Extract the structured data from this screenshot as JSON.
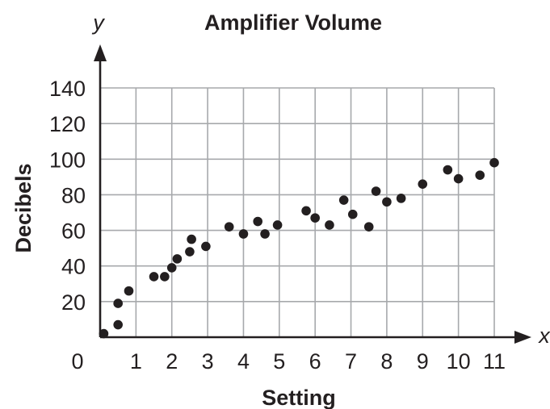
{
  "chart_data": {
    "type": "scatter",
    "title": "Amplifier Volume",
    "xlabel": "Setting",
    "ylabel": "Decibels",
    "x_axis_letter": "x",
    "y_axis_letter": "y",
    "origin_label": "0",
    "xlim": [
      0,
      11
    ],
    "ylim": [
      0,
      140
    ],
    "x_ticks": [
      1,
      2,
      3,
      4,
      5,
      6,
      7,
      8,
      9,
      10,
      11
    ],
    "y_ticks": [
      20,
      40,
      60,
      80,
      100,
      120,
      140
    ],
    "grid": true,
    "points": [
      {
        "x": 0.1,
        "y": 2
      },
      {
        "x": 0.5,
        "y": 7
      },
      {
        "x": 0.5,
        "y": 19
      },
      {
        "x": 0.8,
        "y": 26
      },
      {
        "x": 1.5,
        "y": 34
      },
      {
        "x": 1.8,
        "y": 34
      },
      {
        "x": 2.0,
        "y": 39
      },
      {
        "x": 2.15,
        "y": 44
      },
      {
        "x": 2.5,
        "y": 48
      },
      {
        "x": 2.55,
        "y": 55
      },
      {
        "x": 2.95,
        "y": 51
      },
      {
        "x": 3.6,
        "y": 62
      },
      {
        "x": 4.0,
        "y": 58
      },
      {
        "x": 4.4,
        "y": 65
      },
      {
        "x": 4.6,
        "y": 58
      },
      {
        "x": 4.95,
        "y": 63
      },
      {
        "x": 5.75,
        "y": 71
      },
      {
        "x": 6.0,
        "y": 67
      },
      {
        "x": 6.4,
        "y": 63
      },
      {
        "x": 6.8,
        "y": 77
      },
      {
        "x": 7.05,
        "y": 69
      },
      {
        "x": 7.5,
        "y": 62
      },
      {
        "x": 7.7,
        "y": 82
      },
      {
        "x": 8.0,
        "y": 76
      },
      {
        "x": 8.4,
        "y": 78
      },
      {
        "x": 9.0,
        "y": 86
      },
      {
        "x": 9.7,
        "y": 94
      },
      {
        "x": 10.0,
        "y": 89
      },
      {
        "x": 10.6,
        "y": 91
      },
      {
        "x": 11.0,
        "y": 98
      }
    ]
  }
}
